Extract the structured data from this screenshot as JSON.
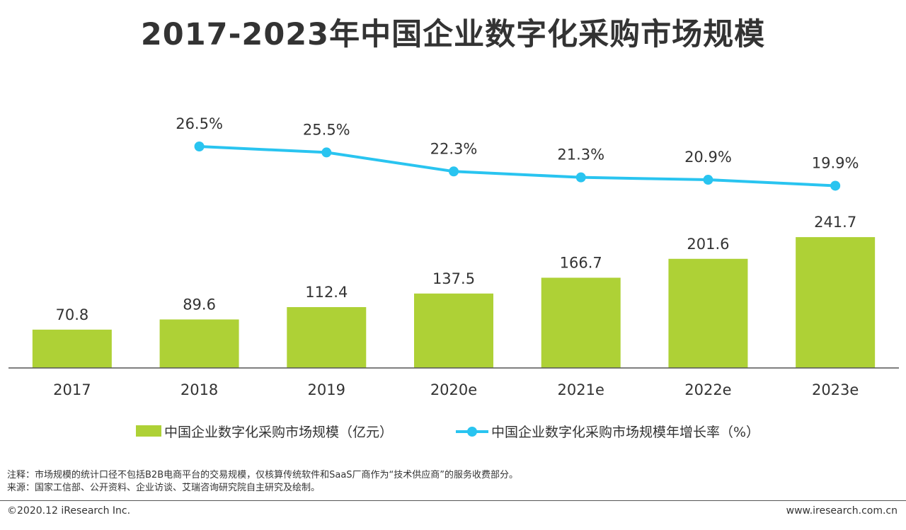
{
  "page": {
    "title": "2017-2023年中国企业数字化采购市场规模",
    "note": "注释：市场规模的统计口径不包括B2B电商平台的交易规模，仅核算传统软件和SaaS厂商作为“技术供应商”的服务收费部分。",
    "source": "来源：国家工信部、公开资料、企业访谈、艾瑞咨询研究院自主研究及绘制。",
    "copyright": "©2020.12 iResearch Inc.",
    "website": "www.iresearch.com.cn"
  },
  "colors": {
    "bar": "#aed136",
    "line": "#29c4f0",
    "text": "#333333",
    "axis": "#555555"
  },
  "chart_data": {
    "type": "bar",
    "title": "2017-2023年中国企业数字化采购市场规模",
    "categories": [
      "2017",
      "2018",
      "2019",
      "2020e",
      "2021e",
      "2022e",
      "2023e"
    ],
    "series": [
      {
        "name": "中国企业数字化采购市场规模（亿元）",
        "type": "bar",
        "values": [
          70.8,
          89.6,
          112.4,
          137.5,
          166.7,
          201.6,
          241.7
        ],
        "labels": [
          "70.8",
          "89.6",
          "112.4",
          "137.5",
          "166.7",
          "201.6",
          "241.7"
        ]
      },
      {
        "name": "中国企业数字化采购市场规模年增长率（%）",
        "type": "line",
        "values": [
          null,
          26.5,
          25.5,
          22.3,
          21.3,
          20.9,
          19.9
        ],
        "labels": [
          null,
          "26.5%",
          "25.5%",
          "22.3%",
          "21.3%",
          "20.9%",
          "19.9%"
        ]
      }
    ],
    "legend": "bottom",
    "grid": false,
    "xlabel": "",
    "ylabel": ""
  }
}
